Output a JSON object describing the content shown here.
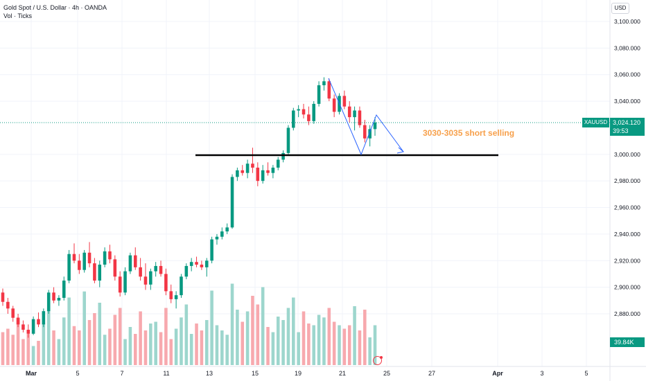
{
  "legend": {
    "title": "Gold Spot / U.S. Dollar · 4h · OANDA",
    "sub": "Vol · Ticks"
  },
  "currency_label": "USD",
  "price_scale": {
    "ticks": [
      "3,100.000",
      "3,080.000",
      "3,060.000",
      "3,040.000",
      "3,000.000",
      "2,980.000",
      "2,960.000",
      "2,940.000",
      "2,920.000",
      "2,900.000",
      "2,880.000"
    ]
  },
  "time_axis": {
    "labels": [
      "Mar",
      "5",
      "7",
      "11",
      "13",
      "15",
      "19",
      "21",
      "25",
      "27",
      "Apr",
      "3",
      "5"
    ]
  },
  "current": {
    "symbol": "XAUUSD",
    "price": "3,024.120",
    "countdown": "39:53",
    "volume": "39.84K"
  },
  "annotation": {
    "text": "3030-3035 short selling",
    "color": "#f7a04b"
  },
  "colors": {
    "up": "#089981",
    "down": "#f23645",
    "vol_up": "#9dd6cd",
    "vol_down": "#f7a9ae",
    "projection": "#2962ff"
  },
  "chart_data": {
    "type": "candlestick",
    "title": "Gold Spot / U.S. Dollar · 4h · OANDA",
    "ylim": [
      2860,
      3110
    ],
    "support_level": 3000,
    "current_price": 3024.12,
    "candles": [
      [
        2896,
        2899,
        2886,
        2889
      ],
      [
        2889,
        2892,
        2880,
        2884
      ],
      [
        2884,
        2886,
        2874,
        2877
      ],
      [
        2877,
        2880,
        2870,
        2872
      ],
      [
        2872,
        2875,
        2866,
        2868
      ],
      [
        2868,
        2872,
        2862,
        2865
      ],
      [
        2865,
        2878,
        2864,
        2876
      ],
      [
        2876,
        2881,
        2870,
        2872
      ],
      [
        2872,
        2884,
        2870,
        2882
      ],
      [
        2882,
        2898,
        2880,
        2896
      ],
      [
        2896,
        2900,
        2888,
        2890
      ],
      [
        2890,
        2894,
        2886,
        2892
      ],
      [
        2892,
        2908,
        2890,
        2905
      ],
      [
        2905,
        2928,
        2903,
        2925
      ],
      [
        2925,
        2933,
        2918,
        2920
      ],
      [
        2920,
        2925,
        2910,
        2913
      ],
      [
        2913,
        2928,
        2911,
        2926
      ],
      [
        2926,
        2934,
        2915,
        2918
      ],
      [
        2918,
        2922,
        2903,
        2905
      ],
      [
        2905,
        2920,
        2900,
        2917
      ],
      [
        2917,
        2930,
        2915,
        2927
      ],
      [
        2927,
        2932,
        2918,
        2921
      ],
      [
        2921,
        2924,
        2905,
        2908
      ],
      [
        2908,
        2912,
        2893,
        2896
      ],
      [
        2896,
        2915,
        2894,
        2912
      ],
      [
        2912,
        2926,
        2910,
        2924
      ],
      [
        2924,
        2930,
        2913,
        2915
      ],
      [
        2915,
        2922,
        2905,
        2908
      ],
      [
        2908,
        2918,
        2898,
        2902
      ],
      [
        2902,
        2914,
        2898,
        2912
      ],
      [
        2912,
        2919,
        2908,
        2916
      ],
      [
        2916,
        2920,
        2908,
        2910
      ],
      [
        2910,
        2914,
        2894,
        2897
      ],
      [
        2897,
        2902,
        2888,
        2891
      ],
      [
        2891,
        2897,
        2884,
        2894
      ],
      [
        2894,
        2910,
        2892,
        2908
      ],
      [
        2908,
        2918,
        2906,
        2916
      ],
      [
        2916,
        2922,
        2912,
        2919
      ],
      [
        2919,
        2923,
        2915,
        2917
      ],
      [
        2917,
        2920,
        2913,
        2915
      ],
      [
        2915,
        2922,
        2908,
        2920
      ],
      [
        2920,
        2938,
        2918,
        2936
      ],
      [
        2936,
        2940,
        2932,
        2938
      ],
      [
        2938,
        2945,
        2936,
        2942
      ],
      [
        2942,
        2948,
        2940,
        2945
      ],
      [
        2945,
        2985,
        2944,
        2983
      ],
      [
        2983,
        2990,
        2980,
        2988
      ],
      [
        2988,
        2992,
        2984,
        2986
      ],
      [
        2986,
        2996,
        2982,
        2993
      ],
      [
        2993,
        3005,
        2986,
        2990
      ],
      [
        2990,
        2994,
        2976,
        2980
      ],
      [
        2980,
        2992,
        2978,
        2988
      ],
      [
        2988,
        2994,
        2984,
        2986
      ],
      [
        2986,
        2992,
        2982,
        2990
      ],
      [
        2990,
        2998,
        2988,
        2996
      ],
      [
        2996,
        3003,
        2994,
        3001
      ],
      [
        3001,
        3022,
        3000,
        3020
      ],
      [
        3020,
        3035,
        3018,
        3033
      ],
      [
        3033,
        3037,
        3028,
        3034
      ],
      [
        3034,
        3038,
        3027,
        3030
      ],
      [
        3030,
        3036,
        3022,
        3025
      ],
      [
        3025,
        3040,
        3023,
        3038
      ],
      [
        3038,
        3055,
        3036,
        3052
      ],
      [
        3052,
        3058,
        3048,
        3055
      ],
      [
        3055,
        3057,
        3040,
        3042
      ],
      [
        3042,
        3045,
        3028,
        3032
      ],
      [
        3032,
        3046,
        3030,
        3044
      ],
      [
        3044,
        3048,
        3034,
        3036
      ],
      [
        3036,
        3040,
        3024,
        3028
      ],
      [
        3028,
        3036,
        3018,
        3033
      ],
      [
        3033,
        3036,
        3020,
        3022
      ],
      [
        3022,
        3026,
        3009,
        3012
      ],
      [
        3012,
        3022,
        3006,
        3019
      ],
      [
        3019,
        3028,
        3014,
        3024
      ]
    ],
    "volumes": [
      0.38,
      0.42,
      0.35,
      0.55,
      0.3,
      0.36,
      0.22,
      0.28,
      0.48,
      0.66,
      0.4,
      0.3,
      0.55,
      0.78,
      0.45,
      0.4,
      0.85,
      0.52,
      0.6,
      0.72,
      0.35,
      0.42,
      0.58,
      0.66,
      0.3,
      0.44,
      0.36,
      0.62,
      0.4,
      0.48,
      0.5,
      0.38,
      0.66,
      0.3,
      0.42,
      0.55,
      0.7,
      0.36,
      0.48,
      0.4,
      0.52,
      0.86,
      0.46,
      0.4,
      0.35,
      0.94,
      0.64,
      0.5,
      0.62,
      0.8,
      0.7,
      0.9,
      0.44,
      0.38,
      0.56,
      0.52,
      0.66,
      0.78,
      0.38,
      0.62,
      0.48,
      0.46,
      0.58,
      0.55,
      0.66,
      0.5,
      0.46,
      0.42,
      0.46,
      0.68,
      0.4,
      0.64,
      0.32,
      0.46
    ]
  }
}
